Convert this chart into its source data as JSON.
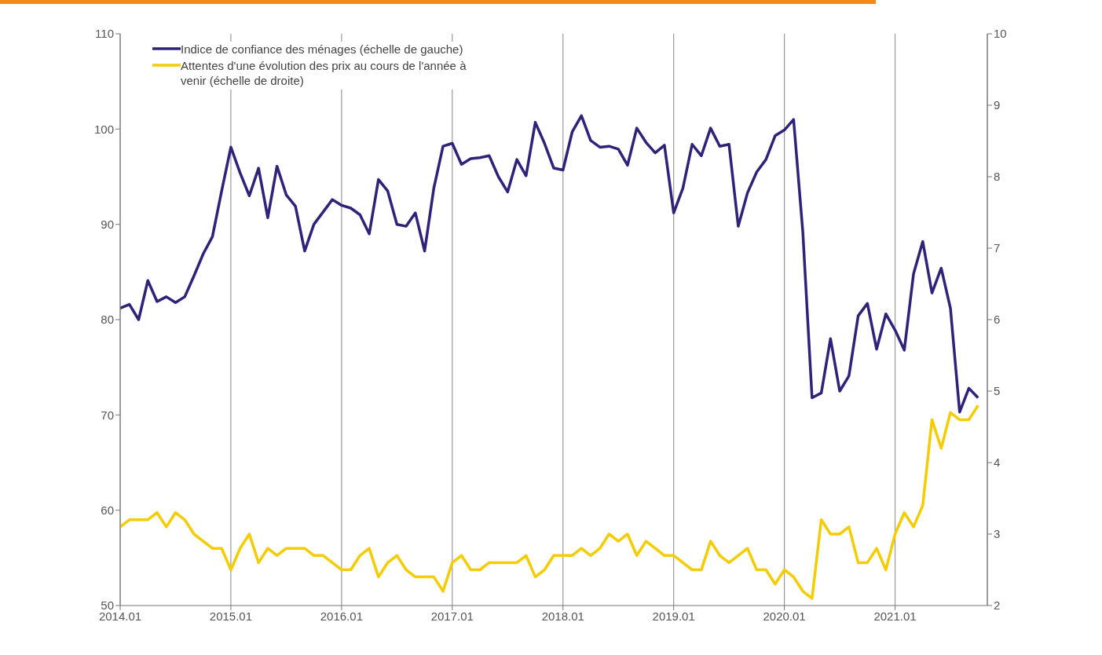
{
  "chart_data": {
    "type": "line",
    "x": [
      "2014-01",
      "2014-02",
      "2014-03",
      "2014-04",
      "2014-05",
      "2014-06",
      "2014-07",
      "2014-08",
      "2014-09",
      "2014-10",
      "2014-11",
      "2014-12",
      "2015-01",
      "2015-02",
      "2015-03",
      "2015-04",
      "2015-05",
      "2015-06",
      "2015-07",
      "2015-08",
      "2015-09",
      "2015-10",
      "2015-11",
      "2015-12",
      "2016-01",
      "2016-02",
      "2016-03",
      "2016-04",
      "2016-05",
      "2016-06",
      "2016-07",
      "2016-08",
      "2016-09",
      "2016-10",
      "2016-11",
      "2016-12",
      "2017-01",
      "2017-02",
      "2017-03",
      "2017-04",
      "2017-05",
      "2017-06",
      "2017-07",
      "2017-08",
      "2017-09",
      "2017-10",
      "2017-11",
      "2017-12",
      "2018-01",
      "2018-02",
      "2018-03",
      "2018-04",
      "2018-05",
      "2018-06",
      "2018-07",
      "2018-08",
      "2018-09",
      "2018-10",
      "2018-11",
      "2018-12",
      "2019-01",
      "2019-02",
      "2019-03",
      "2019-04",
      "2019-05",
      "2019-06",
      "2019-07",
      "2019-08",
      "2019-09",
      "2019-10",
      "2019-11",
      "2019-12",
      "2020-01",
      "2020-02",
      "2020-03",
      "2020-04",
      "2020-05",
      "2020-06",
      "2020-07",
      "2020-08",
      "2020-09",
      "2020-10",
      "2020-11",
      "2020-12",
      "2021-01",
      "2021-02",
      "2021-03",
      "2021-04",
      "2021-05",
      "2021-06",
      "2021-07",
      "2021-08",
      "2021-09",
      "2021-10"
    ],
    "series": [
      {
        "name": "Indice de confiance des ménages (échelle de gauche)",
        "color": "#2e2378",
        "axis": "y",
        "values": [
          81.2,
          81.6,
          80.0,
          84.1,
          81.9,
          82.4,
          81.8,
          82.4,
          84.6,
          86.9,
          88.7,
          93.5,
          98.1,
          95.4,
          93.0,
          95.9,
          90.7,
          96.1,
          93.1,
          91.9,
          87.2,
          90.0,
          91.3,
          92.6,
          92.0,
          91.7,
          91.0,
          89.0,
          94.7,
          93.5,
          90.0,
          89.8,
          91.2,
          87.2,
          93.8,
          98.2,
          98.5,
          96.3,
          96.9,
          97.0,
          97.2,
          95.0,
          93.4,
          96.8,
          95.1,
          100.7,
          98.5,
          95.9,
          95.7,
          99.7,
          101.4,
          98.8,
          98.1,
          98.2,
          97.9,
          96.2,
          100.1,
          98.6,
          97.5,
          98.3,
          91.2,
          93.8,
          98.4,
          97.2,
          100.1,
          98.2,
          98.4,
          89.8,
          93.3,
          95.5,
          96.8,
          99.3,
          99.9,
          101.0,
          89.2,
          71.8,
          72.3,
          78.0,
          72.5,
          74.1,
          80.4,
          81.7,
          76.9,
          80.6,
          78.9,
          76.8,
          84.8,
          88.2,
          82.8,
          85.4,
          81.2,
          70.3,
          72.8,
          71.8
        ]
      },
      {
        "name": "Attentes d'une évolution des prix au cours de l'année à venir (échelle de droite)",
        "color": "#f5cc00",
        "axis": "y2",
        "values": [
          3.1,
          3.2,
          3.2,
          3.2,
          3.3,
          3.1,
          3.3,
          3.2,
          3.0,
          2.9,
          2.8,
          2.8,
          2.5,
          2.8,
          3.0,
          2.6,
          2.8,
          2.7,
          2.8,
          2.8,
          2.8,
          2.7,
          2.7,
          2.6,
          2.5,
          2.5,
          2.7,
          2.8,
          2.4,
          2.6,
          2.7,
          2.5,
          2.4,
          2.4,
          2.4,
          2.2,
          2.6,
          2.7,
          2.5,
          2.5,
          2.6,
          2.6,
          2.6,
          2.6,
          2.7,
          2.4,
          2.5,
          2.7,
          2.7,
          2.7,
          2.8,
          2.7,
          2.8,
          3.0,
          2.9,
          3.0,
          2.7,
          2.9,
          2.8,
          2.7,
          2.7,
          2.6,
          2.5,
          2.5,
          2.9,
          2.7,
          2.6,
          2.7,
          2.8,
          2.5,
          2.5,
          2.3,
          2.5,
          2.4,
          2.2,
          2.1,
          3.2,
          3.0,
          3.0,
          3.1,
          2.6,
          2.6,
          2.8,
          2.5,
          3.0,
          3.3,
          3.1,
          3.4,
          4.6,
          4.2,
          4.7,
          4.6,
          4.6,
          4.8
        ]
      }
    ],
    "xlim": [
      "2014-01",
      "2021-11"
    ],
    "xticks": [
      {
        "value": "2014-01",
        "label": "2014.01"
      },
      {
        "value": "2015-01",
        "label": "2015.01"
      },
      {
        "value": "2016-01",
        "label": "2016.01"
      },
      {
        "value": "2017-01",
        "label": "2017.01"
      },
      {
        "value": "2018-01",
        "label": "2018.01"
      },
      {
        "value": "2019-01",
        "label": "2019.01"
      },
      {
        "value": "2020-01",
        "label": "2020.01"
      },
      {
        "value": "2021-01",
        "label": "2021.01"
      }
    ],
    "ylim": [
      50,
      110
    ],
    "yticks": [
      50,
      60,
      70,
      80,
      90,
      100,
      110
    ],
    "y2lim": [
      2,
      10
    ],
    "y2ticks": [
      2,
      3,
      4,
      5,
      6,
      7,
      8,
      9,
      10
    ],
    "grid": "x",
    "legend": "top left",
    "marker": "none",
    "line_style": "solid"
  }
}
